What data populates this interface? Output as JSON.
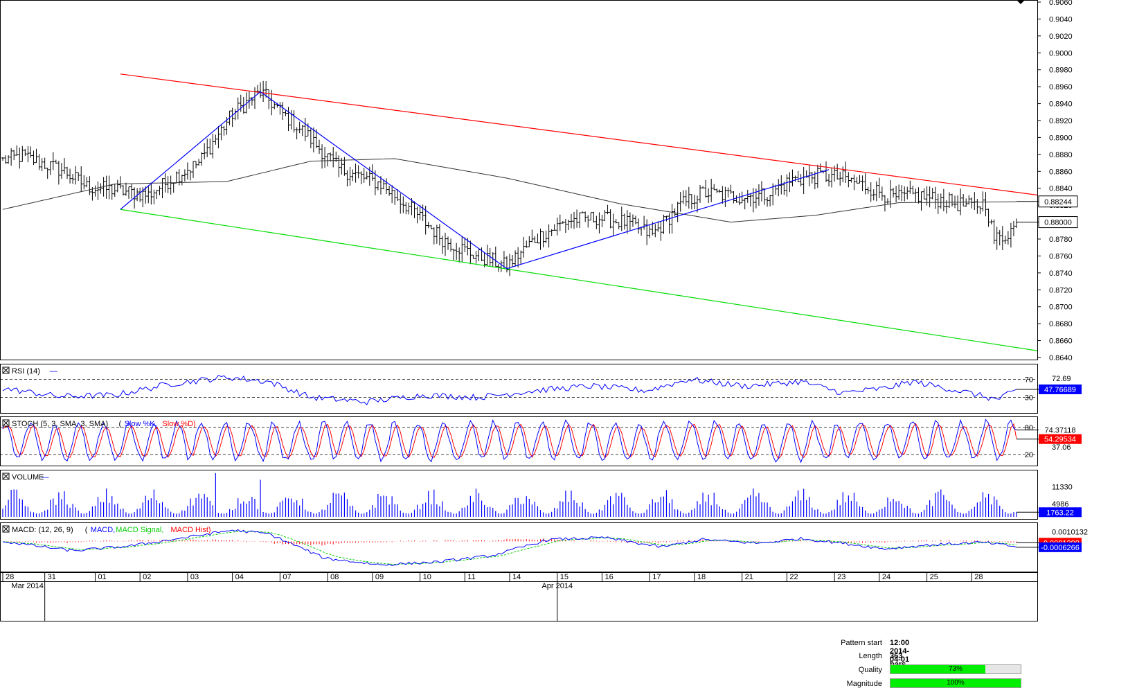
{
  "pattern_info": {
    "pattern_start_label": "Pattern start",
    "pattern_start_value": "12:00 2014-04-01",
    "length_label": "Length",
    "length_value": "363 bars",
    "quality_label": "Quality",
    "quality_value": "73%",
    "quality_fraction": 0.73,
    "magnitude_label": "Magnitude",
    "magnitude_value": "100%",
    "magnitude_fraction": 1.0
  },
  "colors": {
    "bullish_bar": "#000000",
    "resistance_line": "#ff0000",
    "support_line": "#00dd00",
    "zigzag": "#0000ff",
    "moving_average": "#333333",
    "rsi_line": "#0000ff",
    "stoch_k": "#0000ff",
    "stoch_d": "#ff0000",
    "volume": "#0000ff",
    "macd": "#0000ff",
    "macd_signal": "#00cc00",
    "macd_hist": "#ff0000",
    "current_price_box": "#ffffff",
    "rsi_box": "#0000ff",
    "macd_box": "#0000ff",
    "stoch_d_box": "#ff0000",
    "quality_fill": "#00ee00"
  },
  "chart_data": [
    {
      "type": "line",
      "name": "price",
      "ylim": [
        0.864,
        0.906
      ],
      "y_ticks": [
        "0.9060",
        "0.9040",
        "0.9020",
        "0.9000",
        "0.8980",
        "0.8960",
        "0.8940",
        "0.8920",
        "0.8900",
        "0.8880",
        "0.8860",
        "0.8840",
        "0.8820",
        "0.8800",
        "0.8780",
        "0.8760",
        "0.8740",
        "0.8720",
        "0.8700",
        "0.8680",
        "0.8660",
        "0.8640"
      ],
      "bar_count": 363,
      "price_anchors": [
        [
          0,
          0.8873
        ],
        [
          7,
          0.8878
        ],
        [
          22,
          0.886
        ],
        [
          30,
          0.8842
        ],
        [
          40,
          0.8838
        ],
        [
          52,
          0.8832
        ],
        [
          62,
          0.8855
        ],
        [
          70,
          0.887
        ],
        [
          82,
          0.8928
        ],
        [
          92,
          0.8954
        ],
        [
          100,
          0.8928
        ],
        [
          108,
          0.8905
        ],
        [
          120,
          0.8863
        ],
        [
          135,
          0.8845
        ],
        [
          147,
          0.8812
        ],
        [
          157,
          0.878
        ],
        [
          168,
          0.8762
        ],
        [
          180,
          0.8748
        ],
        [
          190,
          0.878
        ],
        [
          202,
          0.8802
        ],
        [
          212,
          0.8805
        ],
        [
          222,
          0.88
        ],
        [
          232,
          0.8785
        ],
        [
          242,
          0.882
        ],
        [
          250,
          0.8835
        ],
        [
          262,
          0.883
        ],
        [
          272,
          0.8832
        ],
        [
          282,
          0.885
        ],
        [
          292,
          0.8855
        ],
        [
          300,
          0.8852
        ],
        [
          310,
          0.884
        ],
        [
          318,
          0.8828
        ],
        [
          326,
          0.8832
        ],
        [
          336,
          0.8825
        ],
        [
          346,
          0.8818
        ],
        [
          351,
          0.8823
        ],
        [
          354,
          0.878
        ],
        [
          357,
          0.8782
        ],
        [
          363,
          0.88
        ]
      ],
      "resistance_line": {
        "x": [
          42,
          363
        ],
        "y": [
          0.8975,
          0.8832
        ]
      },
      "support_line": {
        "x": [
          42,
          363
        ],
        "y": [
          0.8815,
          0.8648
        ]
      },
      "zigzag": {
        "x": [
          42,
          92,
          180,
          295
        ],
        "y": [
          0.8815,
          0.8954,
          0.8745,
          0.8862
        ]
      },
      "moving_average": {
        "x": [
          0,
          40,
          80,
          110,
          140,
          180,
          220,
          260,
          290,
          320,
          363
        ],
        "y": [
          0.8815,
          0.8845,
          0.8848,
          0.8872,
          0.8875,
          0.8852,
          0.8822,
          0.88,
          0.8808,
          0.8823,
          0.8824
        ]
      },
      "current_price_label": "0.88000",
      "current_price": 0.88,
      "ma_value_label": "0.88244",
      "ma_value": 0.88244,
      "x_tick_labels": [
        "28",
        "31",
        "01",
        "02",
        "03",
        "04",
        "07",
        "08",
        "09",
        "10",
        "11",
        "14",
        "15",
        "16",
        "17",
        "18",
        "21",
        "22",
        "23",
        "24",
        "25",
        "28"
      ],
      "x_tick_bars": [
        0,
        15,
        33,
        49,
        66,
        82,
        99,
        116,
        132,
        149,
        165,
        181,
        198,
        214,
        231,
        247,
        264,
        280,
        297,
        313,
        330,
        346
      ],
      "x_month_labels": [
        "Mar 2014",
        "Apr 2014"
      ],
      "x_month_bars": [
        15,
        198
      ]
    },
    {
      "type": "line",
      "name": "RSI",
      "title": "RSI (14)",
      "ylim": [
        0,
        100
      ],
      "levels": [
        70,
        30
      ],
      "level_labels": [
        "70",
        "30"
      ],
      "tick_label": "72.69",
      "tick_value": 72.69,
      "current_label": "47.76689",
      "current": 47.77,
      "anchors": [
        [
          0,
          50
        ],
        [
          20,
          32
        ],
        [
          40,
          35
        ],
        [
          60,
          60
        ],
        [
          80,
          75
        ],
        [
          95,
          65
        ],
        [
          110,
          30
        ],
        [
          130,
          20
        ],
        [
          150,
          35
        ],
        [
          170,
          30
        ],
        [
          190,
          45
        ],
        [
          210,
          55
        ],
        [
          230,
          45
        ],
        [
          245,
          70
        ],
        [
          265,
          55
        ],
        [
          285,
          65
        ],
        [
          300,
          40
        ],
        [
          315,
          50
        ],
        [
          325,
          65
        ],
        [
          345,
          40
        ],
        [
          355,
          25
        ],
        [
          363,
          48
        ]
      ]
    },
    {
      "type": "line",
      "name": "STOCH",
      "title": "STOCH (5, 3, SMA, 3, SMA)",
      "legend": [
        "Slow %K",
        "Slow %D"
      ],
      "ylim": [
        0,
        100
      ],
      "levels": [
        80,
        20
      ],
      "level_labels": [
        "80",
        "20"
      ],
      "tick_label": "37.06",
      "tick_value": 37.06,
      "k_label": "74.37118",
      "k_current": 74.37,
      "d_label": "54.29534",
      "d_current": 54.3
    },
    {
      "type": "bar",
      "name": "VOLUME",
      "title": "VOLUME",
      "ylim": [
        0,
        17000
      ],
      "tick_labels": [
        "11330",
        "4986"
      ],
      "tick_values": [
        11330,
        4986
      ],
      "current_label": "1763.22",
      "current": 1763.22
    },
    {
      "type": "line",
      "name": "MACD",
      "title": "MACD: (12, 26, 9)",
      "legend": [
        "MACD",
        "MACD Signal",
        "MACD Hist"
      ],
      "ylim": [
        -0.003,
        0.0018
      ],
      "tick_label": "0.0010132",
      "tick_value": 0.0010132,
      "macd_label": "-0.0006266",
      "macd_current": -0.0006266,
      "hist_label": "-0.0001399",
      "hist_current": -0.0001399,
      "anchors": [
        [
          0,
          0.0
        ],
        [
          25,
          -0.001
        ],
        [
          45,
          -0.0005
        ],
        [
          65,
          0.0004
        ],
        [
          82,
          0.0012
        ],
        [
          95,
          0.0008
        ],
        [
          115,
          -0.0018
        ],
        [
          135,
          -0.0025
        ],
        [
          155,
          -0.0022
        ],
        [
          175,
          -0.0015
        ],
        [
          195,
          0.0002
        ],
        [
          215,
          0.0004
        ],
        [
          235,
          -0.0006
        ],
        [
          250,
          0.0002
        ],
        [
          270,
          -0.0002
        ],
        [
          285,
          0.0003
        ],
        [
          300,
          -0.0002
        ],
        [
          315,
          -0.0008
        ],
        [
          330,
          -0.0004
        ],
        [
          350,
          -0.0001
        ],
        [
          363,
          -0.0006
        ]
      ]
    }
  ]
}
